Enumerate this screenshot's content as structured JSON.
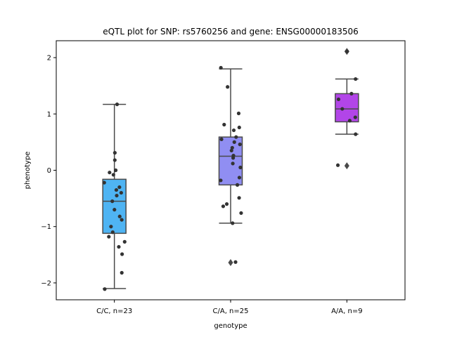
{
  "chart_data": {
    "type": "box",
    "title": "eQTL plot for SNP: rs5760256 and gene: ENSG00000183506",
    "xlabel": "genotype",
    "ylabel": "phenotype",
    "ylim": [
      -2.3,
      2.3
    ],
    "yticks": [
      -2,
      -1,
      0,
      1,
      2
    ],
    "yticklabels": [
      "−2",
      "−1",
      "0",
      "1",
      "2"
    ],
    "grid": false,
    "groups": [
      {
        "label": "C/C, n=23",
        "color": "#4fb4f3",
        "q1": -1.12,
        "median": -0.55,
        "q3": -0.16,
        "whisker_low": -2.1,
        "whisker_high": 1.17,
        "outliers": [],
        "points": [
          -0.3,
          0.0,
          -0.08,
          -0.04,
          -0.4,
          -0.82,
          -0.7,
          0.31,
          0.18,
          -0.22,
          -0.35,
          -0.45,
          -0.55,
          -0.88,
          -1.0,
          -1.1,
          -1.18,
          -1.27,
          -1.36,
          -1.49,
          -1.82,
          -2.11,
          1.17
        ]
      },
      {
        "label": "C/A, n=25",
        "color": "#908ef2",
        "q1": -0.26,
        "median": 0.25,
        "q3": 0.59,
        "whisker_low": -0.94,
        "whisker_high": 1.8,
        "outliers": [
          -1.64
        ],
        "points": [
          1.82,
          1.48,
          1.01,
          0.81,
          0.76,
          0.71,
          0.59,
          0.55,
          0.5,
          0.46,
          0.4,
          0.35,
          0.26,
          0.22,
          0.05,
          -0.13,
          -0.18,
          -0.26,
          -0.49,
          -0.6,
          -0.64,
          -0.76,
          -0.94,
          -1.63,
          0.12
        ]
      },
      {
        "label": "A/A, n=9",
        "color": "#b245e8",
        "q1": 0.86,
        "median": 1.09,
        "q3": 1.36,
        "whisker_low": 0.64,
        "whisker_high": 1.62,
        "outliers": [
          2.11,
          0.08
        ],
        "points": [
          2.11,
          1.62,
          1.36,
          1.26,
          1.09,
          0.94,
          0.88,
          0.64,
          0.09
        ]
      }
    ]
  }
}
